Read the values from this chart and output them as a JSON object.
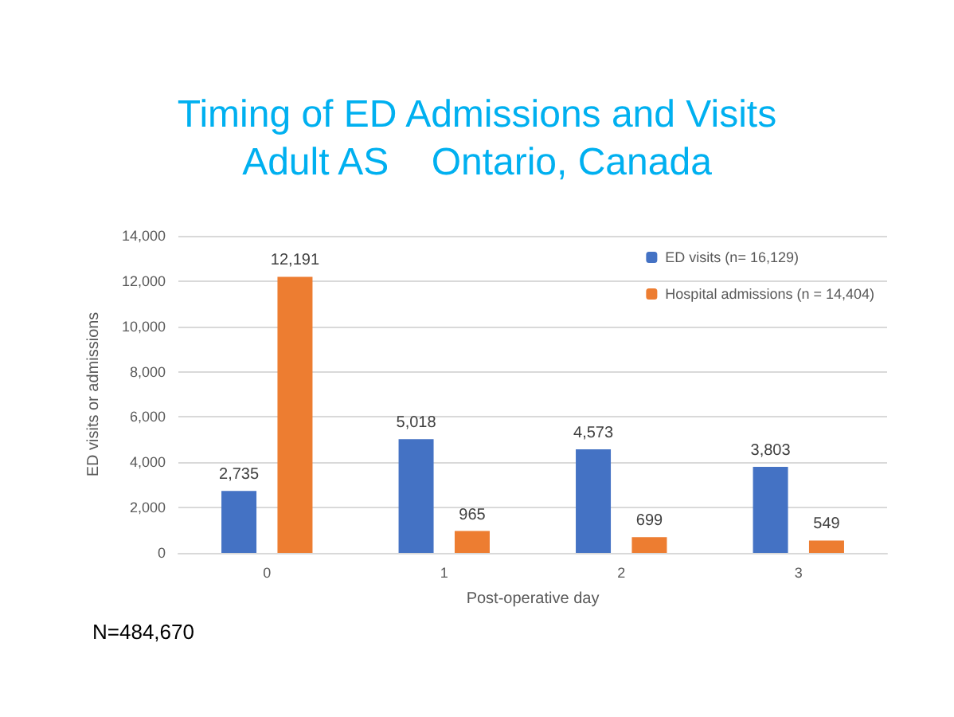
{
  "chart_data": {
    "type": "bar",
    "title": "Timing of ED Admissions and Visits\nAdult AS    Ontario, Canada",
    "xlabel": "Post-operative day",
    "ylabel": "ED visits or admissions",
    "categories": [
      "0",
      "1",
      "2",
      "3"
    ],
    "series": [
      {
        "name": "ED visits (n= 16,129)",
        "color": "#4472c4",
        "values": [
          2735,
          5018,
          4573,
          3803
        ],
        "value_labels": [
          "2,735",
          "5,018",
          "4,573",
          "3,803"
        ]
      },
      {
        "name": "Hospital admissions (n = 14,404)",
        "color": "#ed7d31",
        "values": [
          12191,
          965,
          699,
          549
        ],
        "value_labels": [
          "12,191",
          "965",
          "699",
          "549"
        ]
      }
    ],
    "ylim": [
      0,
      14000
    ],
    "yticks": [
      {
        "value": 0,
        "label": "0"
      },
      {
        "value": 2000,
        "label": "2,000"
      },
      {
        "value": 4000,
        "label": "4,000"
      },
      {
        "value": 6000,
        "label": "6,000"
      },
      {
        "value": 8000,
        "label": "8,000"
      },
      {
        "value": 10000,
        "label": "10,000"
      },
      {
        "value": 12000,
        "label": "12,000"
      },
      {
        "value": 14000,
        "label": "14,000"
      }
    ],
    "grid": "y",
    "legend": "top right",
    "annotations": [
      "N=484,670"
    ]
  }
}
